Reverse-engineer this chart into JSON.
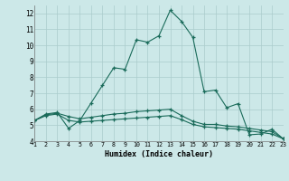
{
  "xlabel": "Humidex (Indice chaleur)",
  "bg_color": "#cce8e8",
  "grid_color": "#aacccc",
  "line_color": "#1a6b5a",
  "xlim": [
    1,
    23
  ],
  "ylim": [
    4,
    12.5
  ],
  "yticks": [
    4,
    5,
    6,
    7,
    8,
    9,
    10,
    11,
    12
  ],
  "xticks": [
    1,
    2,
    3,
    4,
    5,
    6,
    7,
    8,
    9,
    10,
    11,
    12,
    13,
    14,
    15,
    16,
    17,
    18,
    19,
    20,
    21,
    22,
    23
  ],
  "series1": [
    [
      1,
      5.3
    ],
    [
      2,
      5.7
    ],
    [
      3,
      5.8
    ],
    [
      4,
      4.8
    ],
    [
      5,
      5.3
    ],
    [
      6,
      6.4
    ],
    [
      7,
      7.5
    ],
    [
      8,
      8.6
    ],
    [
      9,
      8.5
    ],
    [
      10,
      10.35
    ],
    [
      11,
      10.2
    ],
    [
      12,
      10.6
    ],
    [
      13,
      12.2
    ],
    [
      14,
      11.5
    ],
    [
      15,
      10.5
    ],
    [
      16,
      7.1
    ],
    [
      17,
      7.2
    ],
    [
      18,
      6.1
    ],
    [
      19,
      6.35
    ],
    [
      20,
      4.4
    ],
    [
      21,
      4.45
    ],
    [
      22,
      4.75
    ],
    [
      23,
      4.15
    ]
  ],
  "series2": [
    [
      1,
      5.3
    ],
    [
      2,
      5.65
    ],
    [
      3,
      5.75
    ],
    [
      4,
      5.55
    ],
    [
      5,
      5.4
    ],
    [
      6,
      5.5
    ],
    [
      7,
      5.6
    ],
    [
      8,
      5.7
    ],
    [
      9,
      5.75
    ],
    [
      10,
      5.85
    ],
    [
      11,
      5.9
    ],
    [
      12,
      5.95
    ],
    [
      13,
      6.0
    ],
    [
      14,
      5.6
    ],
    [
      15,
      5.25
    ],
    [
      16,
      5.05
    ],
    [
      17,
      5.05
    ],
    [
      18,
      4.95
    ],
    [
      19,
      4.9
    ],
    [
      20,
      4.8
    ],
    [
      21,
      4.7
    ],
    [
      22,
      4.6
    ],
    [
      23,
      4.15
    ]
  ],
  "series3": [
    [
      1,
      5.3
    ],
    [
      2,
      5.6
    ],
    [
      3,
      5.7
    ],
    [
      4,
      5.3
    ],
    [
      5,
      5.2
    ],
    [
      6,
      5.25
    ],
    [
      7,
      5.3
    ],
    [
      8,
      5.35
    ],
    [
      9,
      5.4
    ],
    [
      10,
      5.45
    ],
    [
      11,
      5.5
    ],
    [
      12,
      5.55
    ],
    [
      13,
      5.6
    ],
    [
      14,
      5.35
    ],
    [
      15,
      5.05
    ],
    [
      16,
      4.9
    ],
    [
      17,
      4.85
    ],
    [
      18,
      4.8
    ],
    [
      19,
      4.75
    ],
    [
      20,
      4.65
    ],
    [
      21,
      4.55
    ],
    [
      22,
      4.45
    ],
    [
      23,
      4.15
    ]
  ]
}
